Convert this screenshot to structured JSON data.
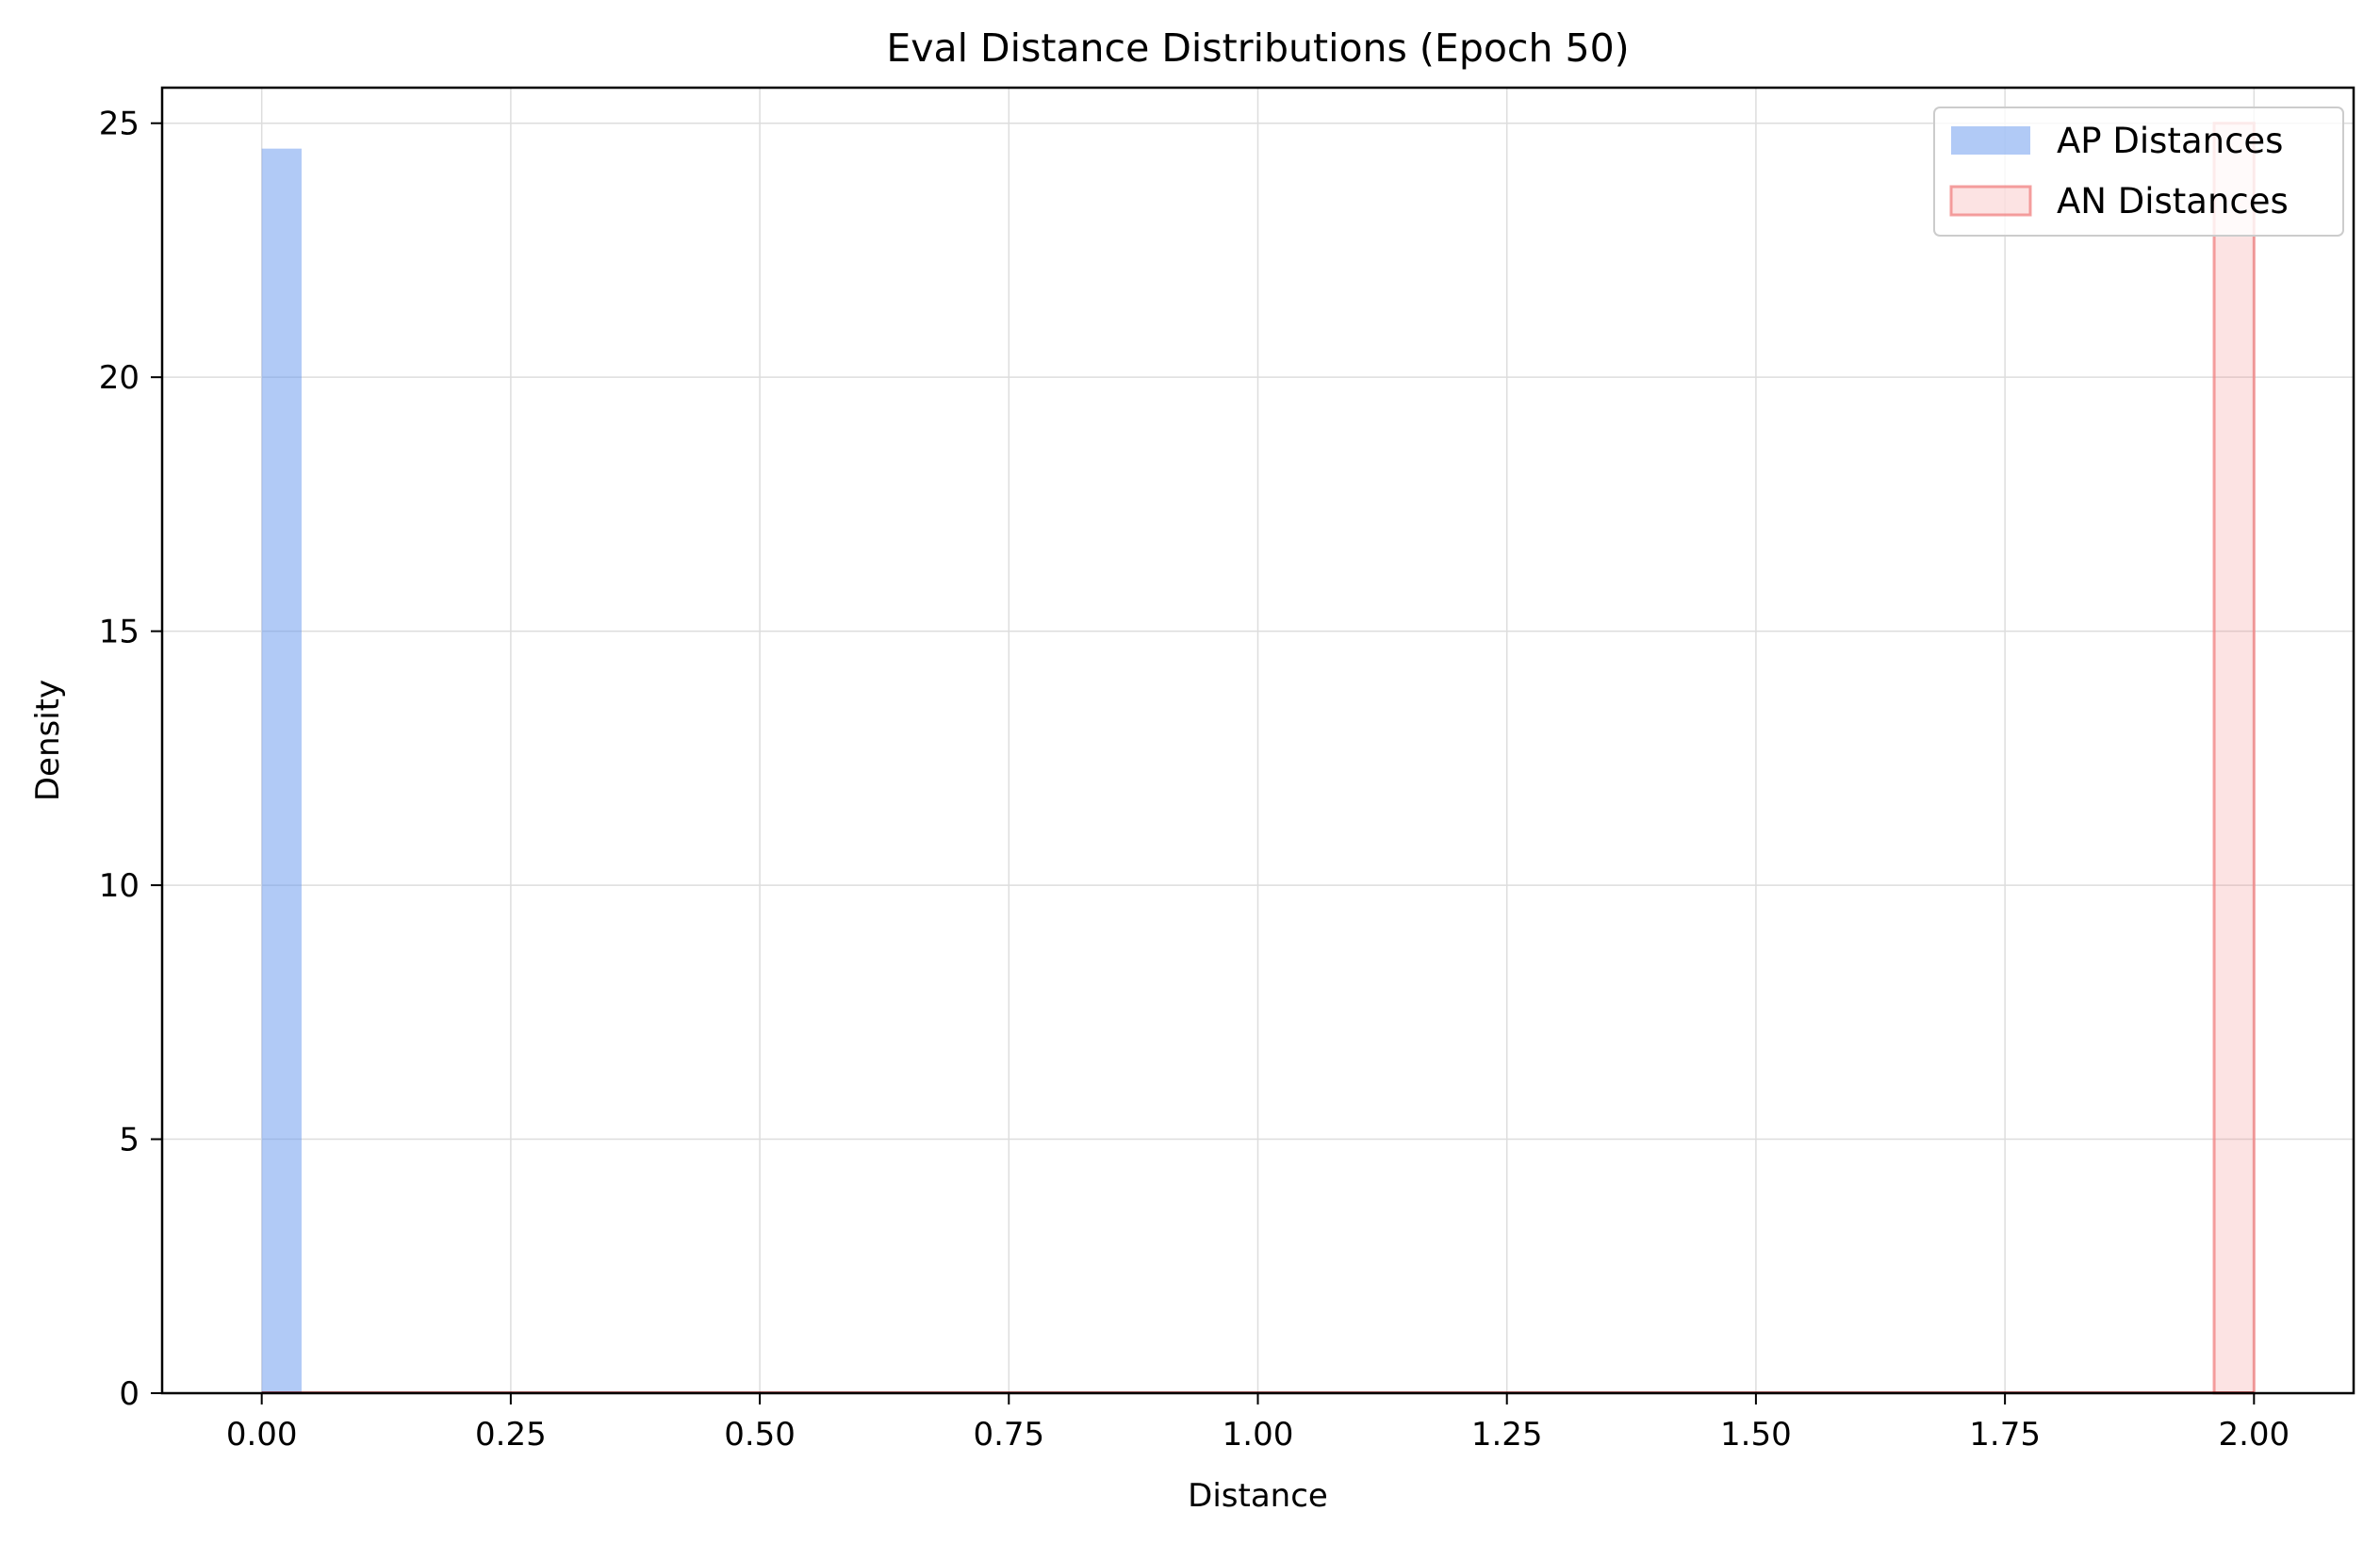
{
  "chart_data": {
    "type": "bar",
    "title": "Eval Distance Distributions (Epoch 50)",
    "xlabel": "Distance",
    "ylabel": "Density",
    "xlim": [
      -0.1,
      2.1
    ],
    "ylim": [
      0,
      25.7
    ],
    "x_ticks": [
      0.0,
      0.25,
      0.5,
      0.75,
      1.0,
      1.25,
      1.5,
      1.75,
      2.0
    ],
    "x_tick_labels": [
      "0.00",
      "0.25",
      "0.50",
      "0.75",
      "1.00",
      "1.25",
      "1.50",
      "1.75",
      "2.00"
    ],
    "y_ticks": [
      0,
      5,
      10,
      15,
      20,
      25
    ],
    "y_tick_labels": [
      "0",
      "5",
      "10",
      "15",
      "20",
      "25"
    ],
    "grid": true,
    "legend_position": "top-right",
    "series": [
      {
        "name": "AP Distances",
        "color": "#6495ED",
        "opacity": 0.5,
        "style": "filled",
        "bins": [
          {
            "x0": 0.0,
            "x1": 0.04,
            "value": 24.5
          }
        ]
      },
      {
        "name": "AN Distances",
        "color": "#F08080",
        "opacity": 0.22,
        "edge_color": "#F08080",
        "style": "filled-outlined",
        "bins": [
          {
            "x0": 1.96,
            "x1": 2.0,
            "value": 25.0
          }
        ]
      }
    ]
  }
}
